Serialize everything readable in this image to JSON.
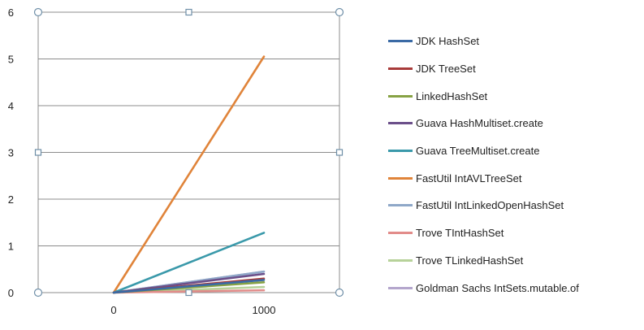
{
  "chart_data": {
    "type": "line",
    "title": "",
    "xlabel": "",
    "ylabel": "",
    "categories": [
      "0",
      "1000"
    ],
    "ylim": [
      0,
      6
    ],
    "yticks": [
      "0",
      "1",
      "2",
      "3",
      "4",
      "5",
      "6"
    ],
    "grid": "horizontal",
    "legend_position": "right",
    "series": [
      {
        "name": "JDK HashSet",
        "color": "#3a6aa5",
        "values": [
          0,
          0.27
        ]
      },
      {
        "name": "JDK TreeSet",
        "color": "#a83b3a",
        "values": [
          0,
          0.3
        ]
      },
      {
        "name": "LinkedHashSet",
        "color": "#87a244",
        "values": [
          0,
          0.22
        ]
      },
      {
        "name": "Guava HashMultiset.create",
        "color": "#6b4f8a",
        "values": [
          0,
          0.4
        ]
      },
      {
        "name": "Guava TreeMultiset.create",
        "color": "#3a99aa",
        "values": [
          0,
          1.28
        ]
      },
      {
        "name": "FastUtil IntAVLTreeSet",
        "color": "#e0843a",
        "values": [
          0,
          5.05
        ]
      },
      {
        "name": "FastUtil IntLinkedOpenHashSet",
        "color": "#8fa8c8",
        "values": [
          0,
          0.45
        ]
      },
      {
        "name": "Trove TIntHashSet",
        "color": "#e28c8a",
        "values": [
          0,
          0.05
        ]
      },
      {
        "name": "Trove TLinkedHashSet",
        "color": "#b7d29a",
        "values": [
          0,
          0.12
        ]
      },
      {
        "name": "Goldman Sachs IntSets.mutable.of",
        "color": "#b4a6cc",
        "values": [
          0,
          0.45
        ]
      }
    ]
  }
}
